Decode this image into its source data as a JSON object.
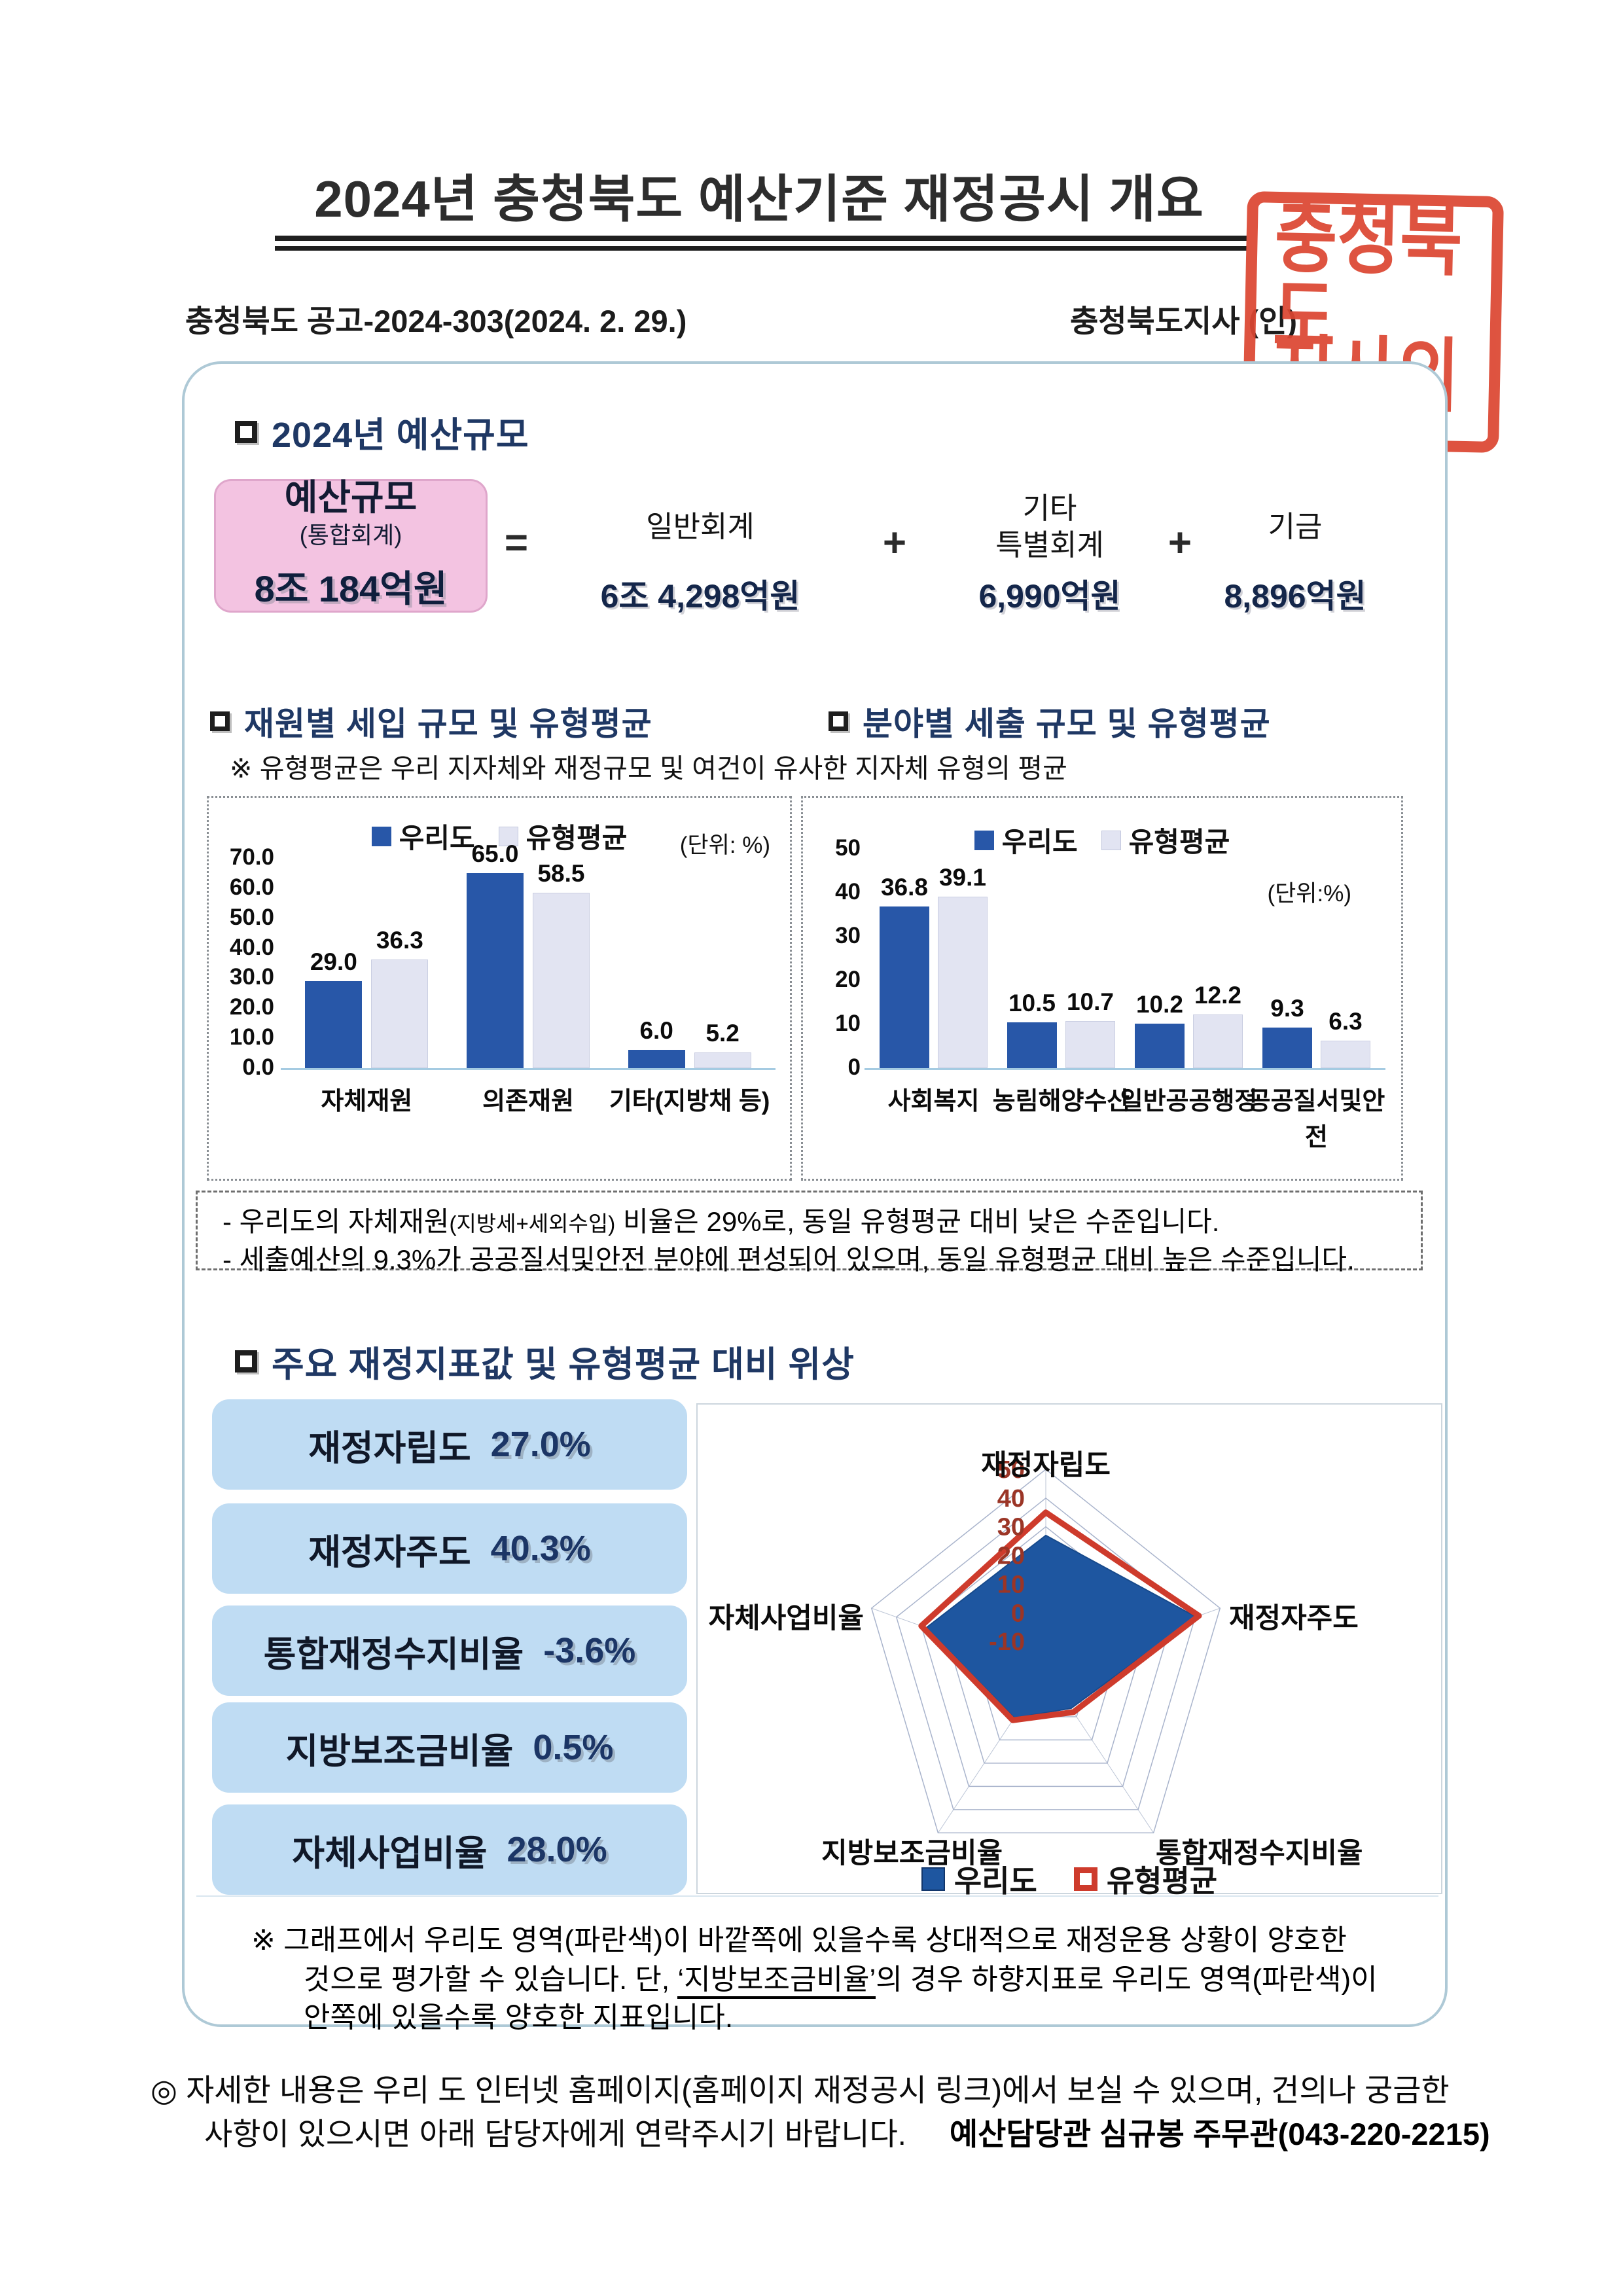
{
  "page": {
    "title": "2024년 충청북도 예산기준 재정공시 개요",
    "notice_left": "충청북도 공고-2024-303(2024. 2. 29.)",
    "notice_right": "충청북도지사 (인)",
    "stamp_line1": "충청북도",
    "stamp_line2": "지사의인"
  },
  "budget": {
    "heading": "2024년 예산규모",
    "total_label": "예산규모",
    "total_sublabel": "(통합회계)",
    "total_value": "8조 184억원",
    "equals": "=",
    "plus": "+",
    "items": [
      {
        "label": "일반회계",
        "value": "6조 4,298억원"
      },
      {
        "label": "기타\n특별회계",
        "value": "6,990억원"
      },
      {
        "label": "기금",
        "value": "8,896억원"
      }
    ]
  },
  "charts_section": {
    "heading_left": "재원별 세입 규모 및 유형평균",
    "heading_right": "분야별 세출 규모 및 유형평균",
    "subnote": "※ 유형평균은 우리 지자체와 재정규모 및 여건이 유사한 지자체 유형의 평균",
    "note1_pre": "- 우리도의 자체재원",
    "note1_small": "(지방세+세외수입)",
    "note1_post": " 비율은 29%로, 동일 유형평균 대비 낮은 수준입니다.",
    "note2": "- 세출예산의 9.3%가 공공질서및안전 분야에 편성되어 있으며, 동일 유형평균 대비 높은 수준입니다."
  },
  "indicators": {
    "heading": "주요 재정지표값 및 유형평균 대비 위상",
    "pills": [
      {
        "label": "재정자립도",
        "value": "27.0%"
      },
      {
        "label": "재정자주도",
        "value": "40.3%"
      },
      {
        "label": "통합재정수지비율",
        "value": "-3.6%"
      },
      {
        "label": "지방보조금비율",
        "value": "0.5%"
      },
      {
        "label": "자체사업비율",
        "value": "28.0%"
      }
    ],
    "note_line1": "※ 그래프에서 우리도 영역(파란색)이 바깥쪽에 있을수록 상대적으로 재정운용 상황이 양호한",
    "note_line2_pre": "것으로 평가할 수 있습니다. 단, ",
    "note_line2_underline": "‘지방보조금비율’",
    "note_line2_post": "의 경우 하향지표로 우리도 영역(파란색)이",
    "note_line3": "안쪽에 있을수록 양호한 지표입니다."
  },
  "footer": {
    "line1": "◎ 자세한 내용은 우리 도 인터넷 홈페이지(홈페이지 재정공시 링크)에서 보실 수 있으며, 건의나 궁금한",
    "line2": "사항이 있으시면 아래 담당자에게 연락주시기 바랍니다.",
    "contact": "예산담당관 심규봉 주무관(043-220-2215)"
  },
  "chart_data": [
    {
      "id": "revenue",
      "type": "bar",
      "title": "재원별 세입 규모 및 유형평균",
      "unit_label": "(단위: %)",
      "categories": [
        "자체재원",
        "의존재원",
        "기타(지방채 등)"
      ],
      "series": [
        {
          "name": "우리도",
          "values": [
            29.0,
            65.0,
            6.0
          ],
          "color": "#2857a8"
        },
        {
          "name": "유형평균",
          "values": [
            36.3,
            58.5,
            5.2
          ],
          "color": "#e2e4f2"
        }
      ],
      "ylim": [
        0,
        70
      ],
      "yticks": [
        [
          70,
          "70.0"
        ],
        [
          60,
          "60.0"
        ],
        [
          50,
          "50.0"
        ],
        [
          40,
          "40.0"
        ],
        [
          30,
          "30.0"
        ],
        [
          20,
          "20.0"
        ],
        [
          10,
          "10.0"
        ],
        [
          0,
          "0.0"
        ]
      ],
      "value_decimals": 1,
      "legend_position": "top",
      "grid": false
    },
    {
      "id": "expense",
      "type": "bar",
      "title": "분야별 세출 규모 및 유형평균",
      "unit_label": "(단위:%)",
      "categories": [
        "사회복지",
        "농림해양수산",
        "일반공공행정",
        "공공질서및안전"
      ],
      "series": [
        {
          "name": "우리도",
          "values": [
            36.8,
            10.5,
            10.2,
            9.3
          ],
          "color": "#2857a8"
        },
        {
          "name": "유형평균",
          "values": [
            39.1,
            10.7,
            12.2,
            6.3
          ],
          "color": "#e2e4f2"
        }
      ],
      "ylim": [
        0,
        50
      ],
      "yticks": [
        [
          50,
          "50"
        ],
        [
          40,
          "40"
        ],
        [
          30,
          "30"
        ],
        [
          20,
          "20"
        ],
        [
          10,
          "10"
        ],
        [
          0,
          "0"
        ]
      ],
      "value_decimals": 1,
      "legend_position": "top",
      "grid": false
    },
    {
      "id": "radar",
      "type": "radar",
      "axes": [
        "재정자립도",
        "재정자주도",
        "통합재정수지비율",
        "지방보조금비율",
        "자체사업비율"
      ],
      "scale_min": -20,
      "scale_max": 50,
      "rings": [
        [
          50,
          "50"
        ],
        [
          40,
          "40"
        ],
        [
          30,
          "30"
        ],
        [
          20,
          "20"
        ],
        [
          10,
          "10"
        ],
        [
          0,
          "0"
        ],
        [
          -10,
          "-10"
        ]
      ],
      "series": [
        {
          "name": "우리도",
          "values": [
            27.0,
            40.3,
            -3.6,
            0.5,
            28.0
          ],
          "fill": "#1e56a0",
          "stroke": "#174a8c"
        },
        {
          "name": "유형평균",
          "values": [
            35.0,
            41.5,
            -2.0,
            1.5,
            30.0
          ],
          "fill": "none",
          "stroke": "#ce3b2c"
        }
      ],
      "legend": [
        "우리도",
        "유형평균"
      ]
    }
  ]
}
